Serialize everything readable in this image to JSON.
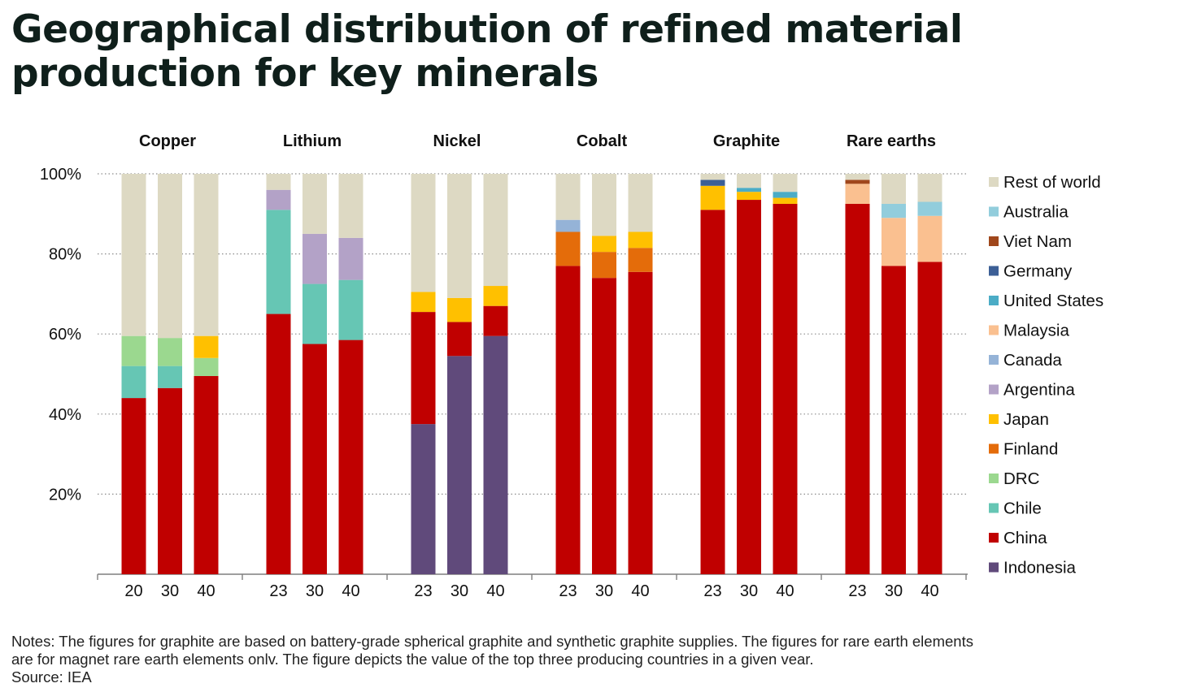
{
  "title_lines": [
    "Geographical distribution of refined material",
    "production for key minerals"
  ],
  "notes": [
    "Notes: The figures for graphite are based on battery-grade spherical graphite and synthetic graphite supplies. The figures for rare earth elements",
    "are for magnet rare earth elements onlv. The figure depicts the value of the top three producing countries in a given vear."
  ],
  "source": "Source: IEA",
  "colors": {
    "Rest of world": "#ddd9c3",
    "Australia": "#92cddc",
    "Viet Nam": "#a0471c",
    "Germany": "#3c5f96",
    "United States": "#4bacc6",
    "Malaysia": "#fac090",
    "Canada": "#95b3d7",
    "Argentina": "#b3a2c7",
    "Japan": "#ffc000",
    "Finland": "#e46c0a",
    "DRC": "#9bd88f",
    "Chile": "#66c6b4",
    "China": "#c00000",
    "Indonesia": "#604a7b"
  },
  "chart_data": {
    "type": "bar",
    "stacked": true,
    "y_tick_labels": [
      "20%",
      "40%",
      "60%",
      "80%",
      "100%"
    ],
    "ylim": [
      0,
      100
    ],
    "grid": "horizontal dotted",
    "legend_placement": "right",
    "legend": [
      "Rest of world",
      "Australia",
      "Viet Nam",
      "Germany",
      "United States",
      "Malaysia",
      "Canada",
      "Argentina",
      "Japan",
      "Finland",
      "DRC",
      "Chile",
      "China",
      "Indonesia"
    ],
    "groups": [
      {
        "name": "Copper",
        "bars": [
          {
            "label": "20",
            "segments": [
              {
                "s": "China",
                "v": 44
              },
              {
                "s": "Chile",
                "v": 8
              },
              {
                "s": "DRC",
                "v": 7.5
              },
              {
                "s": "Rest of world",
                "v": 40.5
              }
            ]
          },
          {
            "label": "30",
            "segments": [
              {
                "s": "China",
                "v": 46.5
              },
              {
                "s": "Chile",
                "v": 5.5
              },
              {
                "s": "DRC",
                "v": 7
              },
              {
                "s": "Rest of world",
                "v": 41
              }
            ]
          },
          {
            "label": "40",
            "segments": [
              {
                "s": "China",
                "v": 49.5
              },
              {
                "s": "DRC",
                "v": 4.5
              },
              {
                "s": "Japan",
                "v": 5.5
              },
              {
                "s": "Rest of world",
                "v": 40.5
              }
            ]
          }
        ]
      },
      {
        "name": "Lithium",
        "bars": [
          {
            "label": "23",
            "segments": [
              {
                "s": "China",
                "v": 65
              },
              {
                "s": "Chile",
                "v": 26
              },
              {
                "s": "Argentina",
                "v": 5
              },
              {
                "s": "Rest of world",
                "v": 4
              }
            ]
          },
          {
            "label": "30",
            "segments": [
              {
                "s": "China",
                "v": 57.5
              },
              {
                "s": "Chile",
                "v": 15
              },
              {
                "s": "Argentina",
                "v": 12.5
              },
              {
                "s": "Rest of world",
                "v": 15
              }
            ]
          },
          {
            "label": "40",
            "segments": [
              {
                "s": "China",
                "v": 58.5
              },
              {
                "s": "Chile",
                "v": 15
              },
              {
                "s": "Argentina",
                "v": 10.5
              },
              {
                "s": "Rest of world",
                "v": 16
              }
            ]
          }
        ]
      },
      {
        "name": "Nickel",
        "bars": [
          {
            "label": "23",
            "segments": [
              {
                "s": "Indonesia",
                "v": 37.5
              },
              {
                "s": "China",
                "v": 28
              },
              {
                "s": "Japan",
                "v": 5
              },
              {
                "s": "Rest of world",
                "v": 29.5
              }
            ]
          },
          {
            "label": "30",
            "segments": [
              {
                "s": "Indonesia",
                "v": 54.5
              },
              {
                "s": "China",
                "v": 8.5
              },
              {
                "s": "Japan",
                "v": 6
              },
              {
                "s": "Rest of world",
                "v": 31
              }
            ]
          },
          {
            "label": "40",
            "segments": [
              {
                "s": "Indonesia",
                "v": 59.5
              },
              {
                "s": "China",
                "v": 7.5
              },
              {
                "s": "Japan",
                "v": 5
              },
              {
                "s": "Rest of world",
                "v": 28
              }
            ]
          }
        ]
      },
      {
        "name": "Cobalt",
        "bars": [
          {
            "label": "23",
            "segments": [
              {
                "s": "China",
                "v": 77
              },
              {
                "s": "Finland",
                "v": 8.5
              },
              {
                "s": "Canada",
                "v": 3
              },
              {
                "s": "Rest of world",
                "v": 11.5
              }
            ]
          },
          {
            "label": "30",
            "segments": [
              {
                "s": "China",
                "v": 74
              },
              {
                "s": "Finland",
                "v": 6.5
              },
              {
                "s": "Japan",
                "v": 4
              },
              {
                "s": "Rest of world",
                "v": 15.5
              }
            ]
          },
          {
            "label": "40",
            "segments": [
              {
                "s": "China",
                "v": 75.5
              },
              {
                "s": "Finland",
                "v": 6
              },
              {
                "s": "Japan",
                "v": 4
              },
              {
                "s": "Rest of world",
                "v": 14.5
              }
            ]
          }
        ]
      },
      {
        "name": "Graphite",
        "bars": [
          {
            "label": "23",
            "segments": [
              {
                "s": "China",
                "v": 91
              },
              {
                "s": "Japan",
                "v": 6
              },
              {
                "s": "Germany",
                "v": 1.5
              },
              {
                "s": "Rest of world",
                "v": 1.5
              }
            ]
          },
          {
            "label": "30",
            "segments": [
              {
                "s": "China",
                "v": 93.5
              },
              {
                "s": "Japan",
                "v": 2
              },
              {
                "s": "United States",
                "v": 1
              },
              {
                "s": "Rest of world",
                "v": 3.5
              }
            ]
          },
          {
            "label": "40",
            "segments": [
              {
                "s": "China",
                "v": 92.5
              },
              {
                "s": "Japan",
                "v": 1.5
              },
              {
                "s": "United States",
                "v": 1.5
              },
              {
                "s": "Rest of world",
                "v": 4.5
              }
            ]
          }
        ]
      },
      {
        "name": "Rare earths",
        "bars": [
          {
            "label": "23",
            "segments": [
              {
                "s": "China",
                "v": 92.5
              },
              {
                "s": "Malaysia",
                "v": 5
              },
              {
                "s": "Viet Nam",
                "v": 1
              },
              {
                "s": "Rest of world",
                "v": 1.5
              }
            ]
          },
          {
            "label": "30",
            "segments": [
              {
                "s": "China",
                "v": 77
              },
              {
                "s": "Malaysia",
                "v": 12
              },
              {
                "s": "Australia",
                "v": 3.5
              },
              {
                "s": "Rest of world",
                "v": 7.5
              }
            ]
          },
          {
            "label": "40",
            "segments": [
              {
                "s": "China",
                "v": 78
              },
              {
                "s": "Malaysia",
                "v": 11.5
              },
              {
                "s": "Australia",
                "v": 3.5
              },
              {
                "s": "Rest of world",
                "v": 7
              }
            ]
          }
        ]
      }
    ]
  }
}
